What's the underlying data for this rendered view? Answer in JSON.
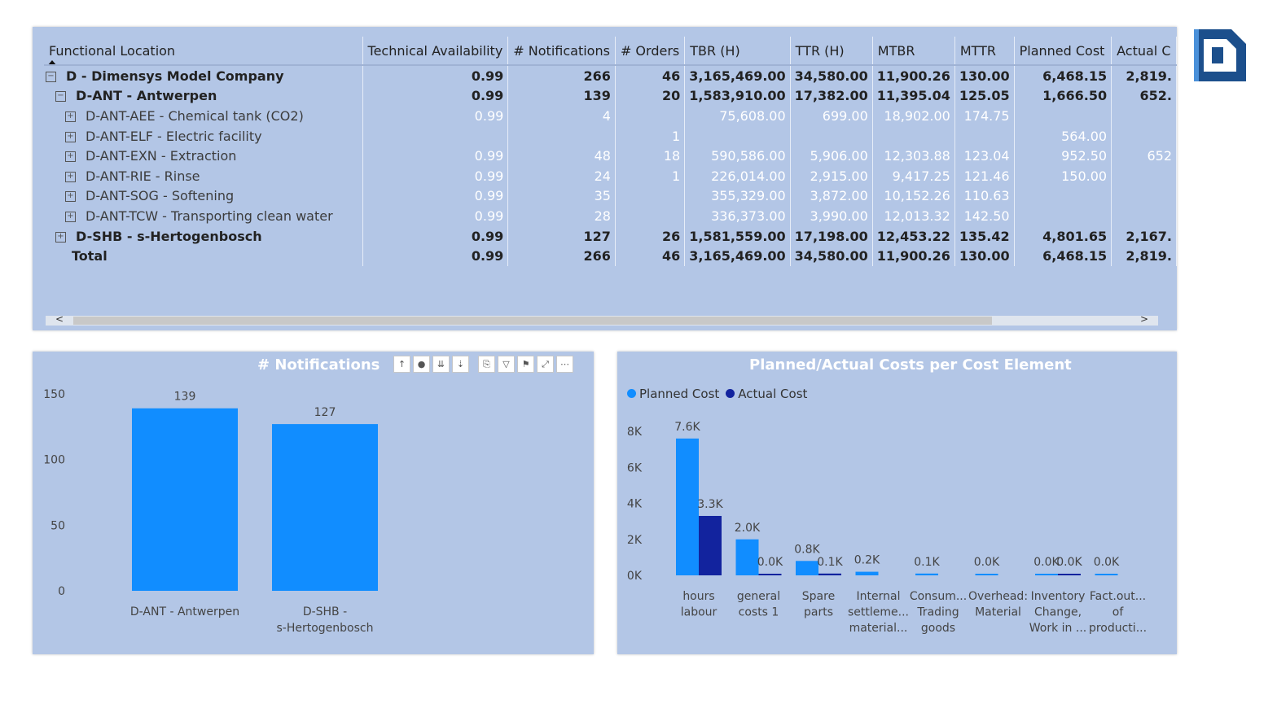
{
  "matrix": {
    "columns": [
      "Functional Location",
      "Technical Availability",
      "# Notifications",
      "# Orders",
      "TBR (H)",
      "TTR (H)",
      "MTBR",
      "MTTR",
      "Planned Cost",
      "Actual C"
    ],
    "rows": [
      {
        "expander": "⊟",
        "level": 0,
        "style": "bold",
        "cells": [
          "D - Dimensys Model Company",
          "0.99",
          "266",
          "46",
          "3,165,469.00",
          "34,580.00",
          "11,900.26",
          "130.00",
          "6,468.15",
          "2,819."
        ]
      },
      {
        "expander": "⊟",
        "level": 1,
        "style": "bold",
        "cells": [
          "D-ANT - Antwerpen",
          "0.99",
          "139",
          "20",
          "1,583,910.00",
          "17,382.00",
          "11,395.04",
          "125.05",
          "1,666.50",
          "652."
        ]
      },
      {
        "expander": "⊞",
        "level": 2,
        "style": "light",
        "cells": [
          "D-ANT-AEE - Chemical tank (CO2)",
          "0.99",
          "4",
          "",
          "75,608.00",
          "699.00",
          "18,902.00",
          "174.75",
          "",
          ""
        ]
      },
      {
        "expander": "⊞",
        "level": 2,
        "style": "light",
        "cells": [
          "D-ANT-ELF - Electric facility",
          "",
          "",
          "1",
          "",
          "",
          "",
          "",
          "564.00",
          ""
        ]
      },
      {
        "expander": "⊞",
        "level": 2,
        "style": "light",
        "cells": [
          "D-ANT-EXN - Extraction",
          "0.99",
          "48",
          "18",
          "590,586.00",
          "5,906.00",
          "12,303.88",
          "123.04",
          "952.50",
          "652"
        ]
      },
      {
        "expander": "⊞",
        "level": 2,
        "style": "light",
        "cells": [
          "D-ANT-RIE - Rinse",
          "0.99",
          "24",
          "1",
          "226,014.00",
          "2,915.00",
          "9,417.25",
          "121.46",
          "150.00",
          ""
        ]
      },
      {
        "expander": "⊞",
        "level": 2,
        "style": "light",
        "cells": [
          "D-ANT-SOG - Softening",
          "0.99",
          "35",
          "",
          "355,329.00",
          "3,872.00",
          "10,152.26",
          "110.63",
          "",
          ""
        ]
      },
      {
        "expander": "⊞",
        "level": 2,
        "style": "light",
        "cells": [
          "D-ANT-TCW - Transporting clean water",
          "0.99",
          "28",
          "",
          "336,373.00",
          "3,990.00",
          "12,013.32",
          "142.50",
          "",
          ""
        ]
      },
      {
        "expander": "⊞",
        "level": 1,
        "style": "bold",
        "cells": [
          "D-SHB - s-Hertogenbosch",
          "0.99",
          "127",
          "26",
          "1,581,559.00",
          "17,198.00",
          "12,453.22",
          "135.42",
          "4,801.65",
          "2,167."
        ]
      },
      {
        "expander": "",
        "level": 1,
        "style": "total",
        "cells": [
          "Total",
          "0.99",
          "266",
          "46",
          "3,165,469.00",
          "34,580.00",
          "11,900.26",
          "130.00",
          "6,468.15",
          "2,819."
        ]
      }
    ],
    "scroll_left": "<",
    "scroll_right": ">"
  },
  "notifications_chart": {
    "title": "# Notifications",
    "toolbar_icons": [
      "drill-up-icon",
      "drill-down-icon",
      "expand-all-icon",
      "expand-next-icon",
      "copy-icon",
      "filter-icon",
      "pin-icon",
      "focus-mode-icon",
      "more-options-icon"
    ],
    "toolbar_glyphs": [
      "↑",
      "●",
      "⇊",
      "⇣",
      "⎘",
      "▽",
      "⚑",
      "⤢",
      "⋯"
    ]
  },
  "cost_chart": {
    "title": "Planned/Actual Costs per Cost Element",
    "legend_planned": "Planned Cost",
    "legend_actual": "Actual Cost"
  },
  "colors": {
    "planned": "#118dff",
    "actual": "#12239e",
    "panel": "#b3c6e6",
    "logo": "#1c4f8c"
  },
  "chart_data": [
    {
      "type": "bar",
      "title": "# Notifications",
      "categories": [
        [
          "D-ANT - Antwerpen"
        ],
        [
          "D-SHB -",
          "s-Hertogenbosch"
        ]
      ],
      "values": [
        139,
        127
      ],
      "data_labels": [
        "139",
        "127"
      ],
      "yticks": [
        "0",
        "50",
        "100",
        "150"
      ],
      "ylim": [
        0,
        150
      ],
      "grid": false
    },
    {
      "type": "bar",
      "title": "Planned/Actual Costs per Cost Element",
      "legend_position": "top-left",
      "categories": [
        [
          "hours",
          "labour"
        ],
        [
          "general",
          "costs 1"
        ],
        [
          "Spare",
          "parts"
        ],
        [
          "Internal",
          "settleme...",
          "material..."
        ],
        [
          "Consum...",
          "Trading",
          "goods"
        ],
        [
          "Overhead:",
          "Material"
        ],
        [
          "Inventory",
          "Change,",
          "Work in ..."
        ],
        [
          "Fact.out...",
          "of",
          "producti..."
        ]
      ],
      "series": [
        {
          "name": "Planned Cost",
          "values": [
            7600,
            2000,
            800,
            200,
            100,
            0,
            0,
            0
          ],
          "labels": [
            "7.6K",
            "2.0K",
            "0.8K",
            "0.2K",
            "0.1K",
            "0.0K",
            "0.0K",
            "0.0K"
          ]
        },
        {
          "name": "Actual Cost",
          "values": [
            3300,
            0,
            100,
            null,
            null,
            null,
            0,
            null
          ],
          "labels": [
            "3.3K",
            "0.0K",
            "0.1K",
            "",
            "",
            "",
            "0.0K",
            ""
          ]
        }
      ],
      "yticks": [
        "0K",
        "2K",
        "4K",
        "6K",
        "8K"
      ],
      "ylim": [
        0,
        8000
      ],
      "grid": false
    }
  ]
}
